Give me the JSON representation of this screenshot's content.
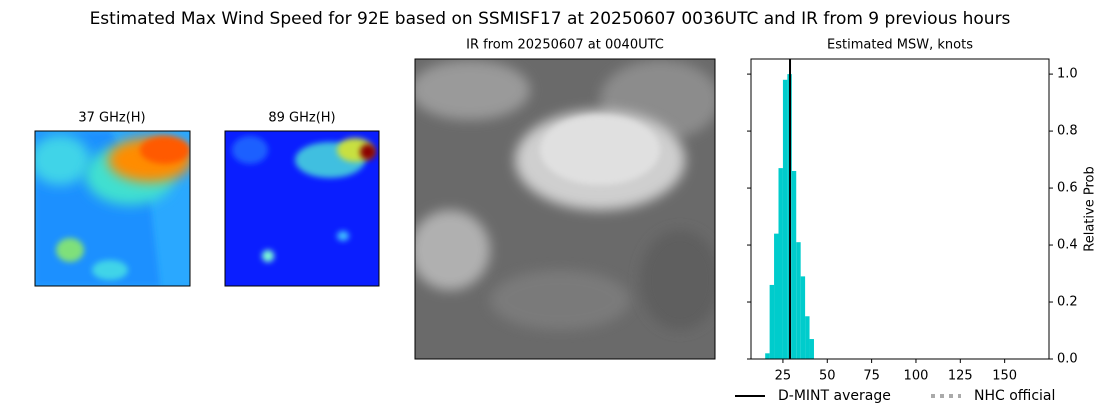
{
  "title": "Estimated Max Wind Speed for 92E based on SSMISF17 at 20250607 0036UTC and IR from 9 previous hours",
  "panels": [
    {
      "title": "37 GHz(H)"
    },
    {
      "title": "89 GHz(H)"
    },
    {
      "title": "IR from 20250607 at 0040UTC"
    }
  ],
  "chart_data": {
    "type": "histogram",
    "title": "Estimated MSW, knots",
    "y_label": "Relative Prob",
    "bins": [
      15,
      17.5,
      20,
      22.5,
      25,
      27.5,
      30,
      32.5,
      35,
      37.5,
      40,
      42.5
    ],
    "values": [
      0.02,
      0.26,
      0.44,
      0.67,
      0.98,
      1.0,
      0.66,
      0.41,
      0.29,
      0.15,
      0.07
    ],
    "color": "#00cccc",
    "xlim": [
      7,
      175
    ],
    "ylim": [
      0,
      1.053
    ],
    "xticks": [
      25,
      50,
      75,
      100,
      125,
      150
    ],
    "yticks": [
      {
        "value": 0,
        "label": "0.0"
      },
      0.2,
      0.4,
      0.6,
      0.8,
      {
        "value": 1,
        "label": "1.0"
      }
    ],
    "y_axis_side": "right",
    "reference_lines": [
      {
        "name": "D-MINT average",
        "x": 29,
        "color": "#000000",
        "style": "solid"
      },
      {
        "name": "NHC official",
        "x": null,
        "color": "#aaaaaa",
        "style": "dotted"
      }
    ]
  }
}
